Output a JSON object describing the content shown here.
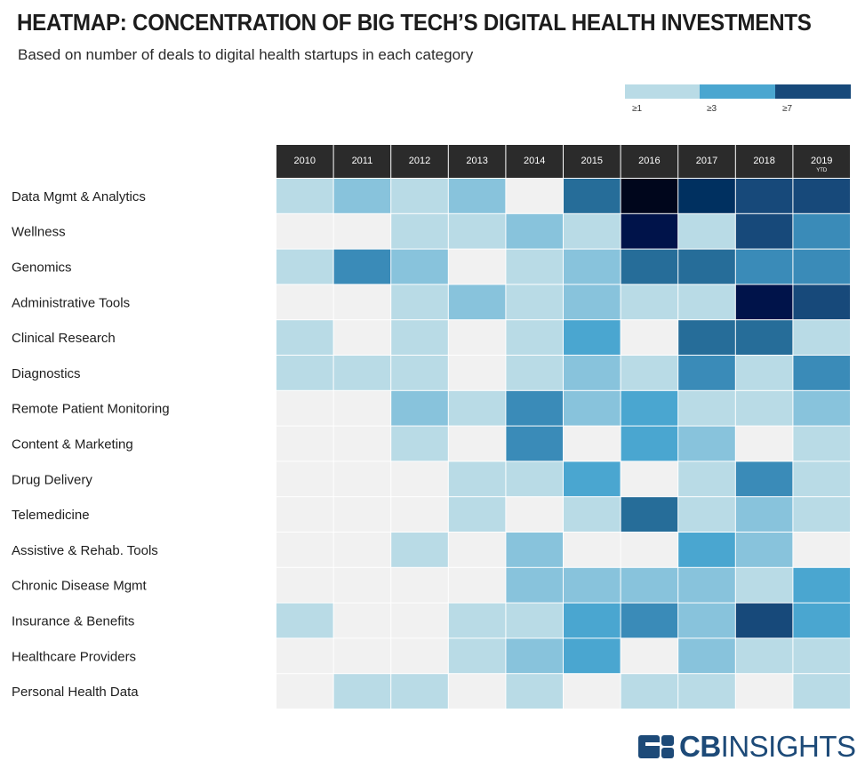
{
  "header": {
    "title": "HEATMAP: CONCENTRATION OF BIG TECH’S DIGITAL HEALTH INVESTMENTS",
    "subtitle": "Based on number of deals to digital health startups in each category"
  },
  "legend": {
    "items": [
      {
        "label": "≥1",
        "color": "#b9dbe6"
      },
      {
        "label": "≥3",
        "color": "#4aa6d0"
      },
      {
        "label": "≥7",
        "color": "#17497a"
      }
    ]
  },
  "colors": {
    "header_bg": "#2b2b2b",
    "empty": "#f1f1f1",
    "levels": [
      "#f1f1f1",
      "#b9dbe6",
      "#88c3dc",
      "#4aa6d0",
      "#3a8bb8",
      "#266d99",
      "#17497a",
      "#003060",
      "#00134a",
      "#00061c"
    ]
  },
  "logo": {
    "bold": "CB",
    "normal": "INSIGHTS",
    "icon": "cb-insights-logo-icon"
  },
  "chart_data": {
    "type": "heatmap",
    "title": "HEATMAP: CONCENTRATION OF BIG TECH’S DIGITAL HEALTH INVESTMENTS",
    "subtitle": "Based on number of deals to digital health startups in each category",
    "x": [
      "2010",
      "2011",
      "2012",
      "2013",
      "2014",
      "2015",
      "2016",
      "2017",
      "2018",
      "2019"
    ],
    "x_sublabels": [
      "",
      "",
      "",
      "",
      "",
      "",
      "",
      "",
      "",
      "YTD"
    ],
    "y": [
      "Data Mgmt & Analytics",
      "Wellness",
      "Genomics",
      "Administrative Tools",
      "Clinical Research",
      "Diagnostics",
      "Remote Patient Monitoring",
      "Content & Marketing",
      "Drug Delivery",
      "Telemedicine",
      "Assistive & Rehab. Tools",
      "Chronic Disease Mgmt",
      "Insurance & Benefits",
      "Healthcare Providers",
      "Personal Health Data"
    ],
    "values": [
      [
        1,
        2,
        1,
        2,
        0,
        5,
        9,
        7,
        6,
        6
      ],
      [
        0,
        0,
        1,
        1,
        2,
        1,
        8,
        1,
        6,
        4
      ],
      [
        1,
        4,
        2,
        0,
        1,
        2,
        5,
        5,
        4,
        4
      ],
      [
        0,
        0,
        1,
        2,
        1,
        2,
        1,
        1,
        8,
        6
      ],
      [
        1,
        0,
        1,
        0,
        1,
        3,
        0,
        5,
        5,
        1
      ],
      [
        1,
        1,
        1,
        0,
        1,
        2,
        1,
        4,
        1,
        4
      ],
      [
        0,
        0,
        2,
        1,
        4,
        2,
        3,
        1,
        1,
        2
      ],
      [
        0,
        0,
        1,
        0,
        4,
        0,
        3,
        2,
        0,
        1
      ],
      [
        0,
        0,
        0,
        1,
        1,
        3,
        0,
        1,
        4,
        1
      ],
      [
        0,
        0,
        0,
        1,
        0,
        1,
        5,
        1,
        2,
        1
      ],
      [
        0,
        0,
        1,
        0,
        2,
        0,
        0,
        3,
        2,
        0
      ],
      [
        0,
        0,
        0,
        0,
        2,
        2,
        2,
        2,
        1,
        3
      ],
      [
        1,
        0,
        0,
        1,
        1,
        3,
        4,
        2,
        6,
        3
      ],
      [
        0,
        0,
        0,
        1,
        2,
        3,
        0,
        2,
        1,
        1
      ],
      [
        0,
        1,
        1,
        0,
        1,
        0,
        1,
        1,
        0,
        1
      ]
    ],
    "value_scale": "relative shade index, 0 = no deals",
    "legend": [
      "≥1",
      "≥3",
      "≥7"
    ],
    "legend_position": "top-right"
  }
}
